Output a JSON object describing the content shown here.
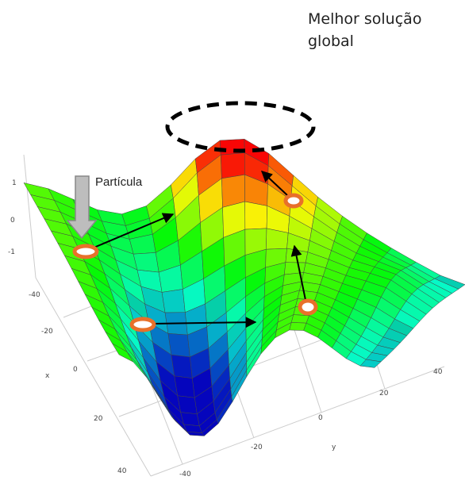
{
  "best_solution": {
    "lines": [
      "Melhor solução",
      "global"
    ]
  },
  "particle_label": "Partícula",
  "z_axis": {
    "ticks": [
      "1",
      "0",
      "-1"
    ]
  },
  "x_axis": {
    "label": "x",
    "ticks": [
      "-40",
      "-20",
      "0",
      "20",
      "40"
    ]
  },
  "y_axis": {
    "label": "y",
    "ticks": [
      "-40",
      "-20",
      "0",
      "20",
      "40"
    ]
  }
}
